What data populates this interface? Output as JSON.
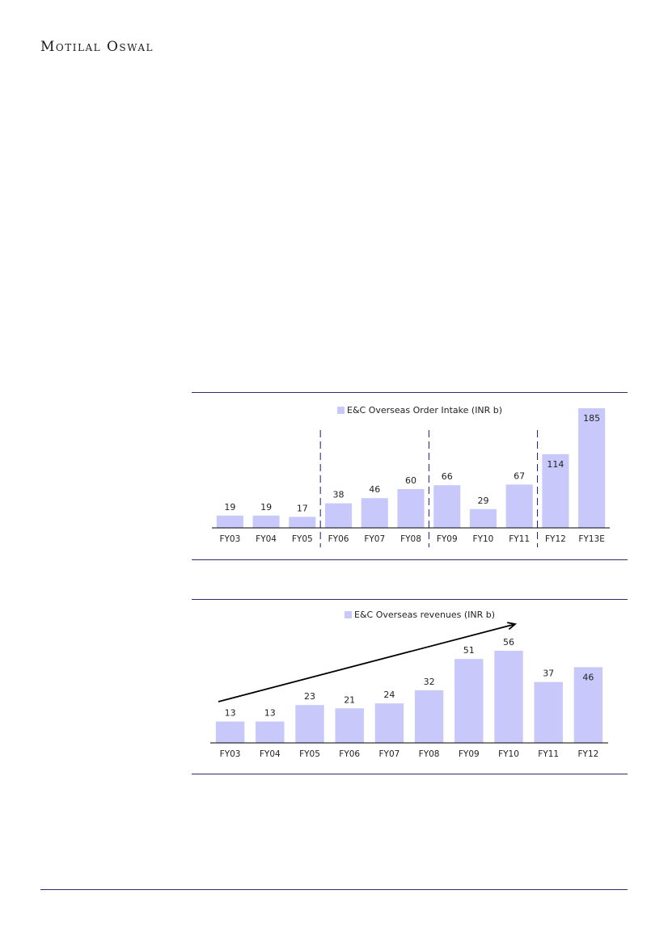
{
  "header": {
    "brand": "Motilal Oswal"
  },
  "colors": {
    "bar": "#c8c8fa",
    "rule": "#2e2e6e",
    "axis": "#000000",
    "divider": "#1a1a8a"
  },
  "chart_data": [
    {
      "type": "bar",
      "legend": "E&C Overseas Order Intake (INR b)",
      "categories": [
        "FY03",
        "FY04",
        "FY05",
        "FY06",
        "FY07",
        "FY08",
        "FY09",
        "FY10",
        "FY11",
        "FY12",
        "FY13E"
      ],
      "values": [
        19,
        19,
        17,
        38,
        46,
        60,
        66,
        29,
        67,
        114,
        185
      ],
      "ylim": [
        0,
        185
      ],
      "dividers_after_index": [
        2,
        5,
        8
      ],
      "label_inside_from_index": 9
    },
    {
      "type": "bar",
      "legend": "E&C Overseas revenues (INR b)",
      "categories": [
        "FY03",
        "FY04",
        "FY05",
        "FY06",
        "FY07",
        "FY08",
        "FY09",
        "FY10",
        "FY11",
        "FY12"
      ],
      "values": [
        13,
        13,
        23,
        21,
        24,
        32,
        51,
        56,
        37,
        46
      ],
      "ylim": [
        0,
        56
      ],
      "trend_arrow": true,
      "label_inside_from_index": 9
    }
  ]
}
